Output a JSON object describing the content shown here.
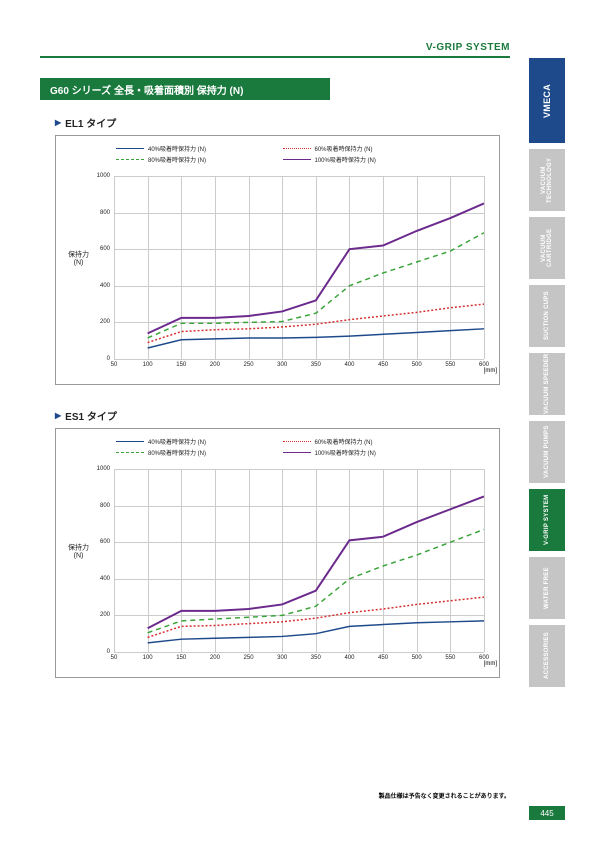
{
  "header": {
    "system": "V-GRIP SYSTEM"
  },
  "brand": "VMECA",
  "sideTabs": [
    {
      "label": "VACUUM TECHNOLOGY",
      "cls": "gray"
    },
    {
      "label": "VACUUM CARTRIDGE",
      "cls": "gray"
    },
    {
      "label": "SUCTION CUPS",
      "cls": "gray"
    },
    {
      "label": "VACUUM SPEEDER",
      "cls": "gray"
    },
    {
      "label": "VACUUM PUMPS",
      "cls": "gray"
    },
    {
      "label": "V-GRIP SYSTEM",
      "cls": "green"
    },
    {
      "label": "WATER FREE",
      "cls": "gray"
    },
    {
      "label": "ACCESSORIES",
      "cls": "gray"
    }
  ],
  "title": "G60 シリーズ 全長・吸着面積別 保持力 (N)",
  "sections": [
    {
      "name": "EL1 タイプ"
    },
    {
      "name": "ES1 タイプ"
    }
  ],
  "legendItems": [
    {
      "label": "40%吸着時保持力 (N)",
      "color": "#1e4a8c",
      "dash": "solid"
    },
    {
      "label": "60%吸着時保持力 (N)",
      "color": "#d62e2e",
      "dash": "dotted"
    },
    {
      "label": "80%吸着時保持力 (N)",
      "color": "#3aa33a",
      "dash": "dashed"
    },
    {
      "label": "100%吸着時保持力 (N)",
      "color": "#6b2a8c",
      "dash": "solid"
    }
  ],
  "chart1": {
    "ylabel": "保持力\n(N)",
    "ylim": [
      0,
      1000
    ],
    "ytick_step": 200,
    "xlim": [
      50,
      600
    ],
    "xtick_step": 50,
    "x_unit": "[mm]",
    "grid_color": "#cccccc",
    "series": [
      {
        "color": "#1e4a8c",
        "dash": "none",
        "width": 1.5,
        "points": [
          [
            100,
            60
          ],
          [
            150,
            105
          ],
          [
            200,
            110
          ],
          [
            250,
            115
          ],
          [
            300,
            115
          ],
          [
            350,
            118
          ],
          [
            400,
            125
          ],
          [
            450,
            135
          ],
          [
            500,
            145
          ],
          [
            550,
            155
          ],
          [
            600,
            165
          ]
        ]
      },
      {
        "color": "#d62e2e",
        "dash": "2,2",
        "width": 1.5,
        "points": [
          [
            100,
            90
          ],
          [
            150,
            150
          ],
          [
            200,
            160
          ],
          [
            250,
            165
          ],
          [
            300,
            175
          ],
          [
            350,
            190
          ],
          [
            400,
            215
          ],
          [
            450,
            235
          ],
          [
            500,
            255
          ],
          [
            550,
            280
          ],
          [
            600,
            300
          ]
        ]
      },
      {
        "color": "#3aa33a",
        "dash": "5,4",
        "width": 1.5,
        "points": [
          [
            100,
            115
          ],
          [
            150,
            195
          ],
          [
            200,
            195
          ],
          [
            250,
            200
          ],
          [
            300,
            205
          ],
          [
            350,
            250
          ],
          [
            400,
            400
          ],
          [
            450,
            470
          ],
          [
            500,
            530
          ],
          [
            550,
            590
          ],
          [
            600,
            690
          ]
        ]
      },
      {
        "color": "#6b2a8c",
        "dash": "none",
        "width": 2,
        "points": [
          [
            100,
            140
          ],
          [
            150,
            225
          ],
          [
            200,
            225
          ],
          [
            250,
            235
          ],
          [
            300,
            260
          ],
          [
            350,
            320
          ],
          [
            400,
            600
          ],
          [
            450,
            620
          ],
          [
            500,
            700
          ],
          [
            550,
            770
          ],
          [
            600,
            850
          ]
        ]
      }
    ]
  },
  "chart2": {
    "ylabel": "保持力\n(N)",
    "ylim": [
      0,
      1000
    ],
    "ytick_step": 200,
    "xlim": [
      50,
      600
    ],
    "xtick_step": 50,
    "x_unit": "[mm]",
    "grid_color": "#cccccc",
    "series": [
      {
        "color": "#1e4a8c",
        "dash": "none",
        "width": 1.5,
        "points": [
          [
            100,
            50
          ],
          [
            150,
            70
          ],
          [
            200,
            75
          ],
          [
            250,
            80
          ],
          [
            300,
            85
          ],
          [
            350,
            100
          ],
          [
            400,
            140
          ],
          [
            450,
            150
          ],
          [
            500,
            160
          ],
          [
            550,
            165
          ],
          [
            600,
            170
          ]
        ]
      },
      {
        "color": "#d62e2e",
        "dash": "2,2",
        "width": 1.5,
        "points": [
          [
            100,
            80
          ],
          [
            150,
            140
          ],
          [
            200,
            145
          ],
          [
            250,
            155
          ],
          [
            300,
            165
          ],
          [
            350,
            185
          ],
          [
            400,
            215
          ],
          [
            450,
            235
          ],
          [
            500,
            260
          ],
          [
            550,
            280
          ],
          [
            600,
            300
          ]
        ]
      },
      {
        "color": "#3aa33a",
        "dash": "5,4",
        "width": 1.5,
        "points": [
          [
            100,
            105
          ],
          [
            150,
            170
          ],
          [
            200,
            180
          ],
          [
            250,
            190
          ],
          [
            300,
            200
          ],
          [
            350,
            250
          ],
          [
            400,
            400
          ],
          [
            450,
            470
          ],
          [
            500,
            530
          ],
          [
            550,
            600
          ],
          [
            600,
            670
          ]
        ]
      },
      {
        "color": "#6b2a8c",
        "dash": "none",
        "width": 2,
        "points": [
          [
            100,
            130
          ],
          [
            150,
            225
          ],
          [
            200,
            225
          ],
          [
            250,
            235
          ],
          [
            300,
            260
          ],
          [
            350,
            335
          ],
          [
            400,
            610
          ],
          [
            450,
            630
          ],
          [
            500,
            710
          ],
          [
            550,
            780
          ],
          [
            600,
            850
          ]
        ]
      }
    ]
  },
  "footer": {
    "note": "製品仕様は予告なく変更されることがあります。",
    "page": "445"
  }
}
